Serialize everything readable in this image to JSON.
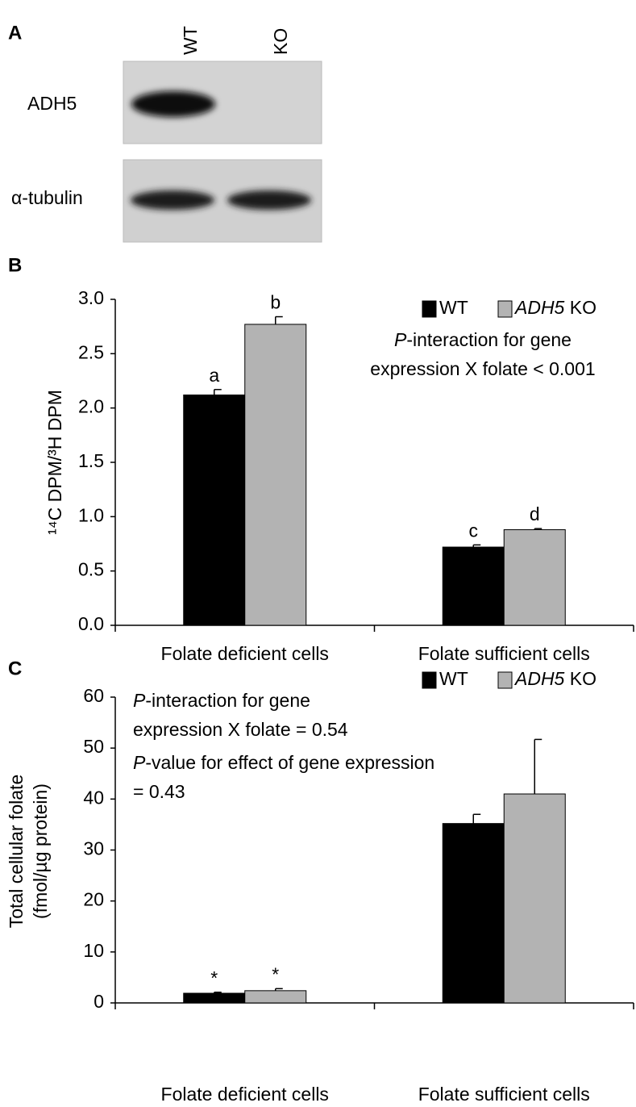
{
  "blot": {
    "panel_label": "A",
    "lanes": [
      "WT",
      "KO"
    ],
    "rows": [
      "ADH5",
      "α-tubulin"
    ]
  },
  "chart_data": [
    {
      "type": "bar",
      "panel_label": "B",
      "ylabel": [
        "¹⁴C DPM/³H DPM"
      ],
      "categories": [
        "Folate deficient cells",
        "Folate sufficient cells"
      ],
      "series": [
        {
          "name": "WT",
          "color": "#000000",
          "values": [
            2.12,
            0.72
          ],
          "errors": [
            0.05,
            0.02
          ],
          "labels": [
            "a",
            "c"
          ]
        },
        {
          "name": "ADH5 KO",
          "color": "#b3b3b3",
          "values": [
            2.77,
            0.88
          ],
          "errors": [
            0.07,
            0.01
          ],
          "labels": [
            "b",
            "d"
          ]
        }
      ],
      "annotations": [
        "P-interaction for gene",
        "expression X folate < 0.001"
      ],
      "ylim": [
        0,
        3
      ],
      "yticks": [
        {
          "value": 0,
          "label": "0.0"
        },
        0.5,
        {
          "value": 1,
          "label": "1.0"
        },
        1.5,
        {
          "value": 2,
          "label": "2.0"
        },
        2.5,
        {
          "value": 3,
          "label": "3.0"
        }
      ],
      "grid": false,
      "legend": "top-right"
    },
    {
      "type": "bar",
      "panel_label": "C",
      "ylabel": [
        "Total cellular folate",
        "(fmol/µg protein)"
      ],
      "categories": [
        "Folate deficient cells",
        "Folate sufficient cells"
      ],
      "series": [
        {
          "name": "WT",
          "color": "#000000",
          "values": [
            1.9,
            35.2
          ],
          "errors": [
            0.2,
            1.8
          ],
          "labels": [
            "*",
            null
          ]
        },
        {
          "name": "ADH5 KO",
          "color": "#b3b3b3",
          "values": [
            2.4,
            41.0
          ],
          "errors": [
            0.4,
            10.7
          ],
          "labels": [
            "*",
            null
          ]
        }
      ],
      "annotations": [
        "P-interaction for gene",
        "expression X folate = 0.54",
        "P-value for effect of gene expression",
        "= 0.43"
      ],
      "ylim": [
        0,
        60
      ],
      "yticks": [
        0,
        10,
        20,
        30,
        40,
        50,
        60
      ],
      "grid": false,
      "legend": "top-right"
    }
  ]
}
